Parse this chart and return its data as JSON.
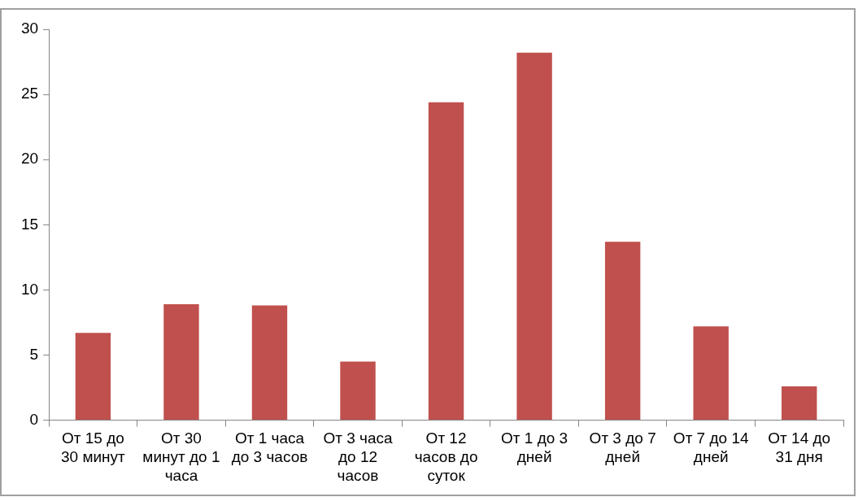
{
  "chart_data": {
    "type": "bar",
    "categories": [
      "От 15 до 30 минут",
      "От 30 минут до 1 часа",
      "От 1 часа до 3 часов",
      "От 3 часа до 12 часов",
      "От 12 часов до суток",
      "От 1 до 3 дней",
      "От 3 до 7 дней",
      "От 7 до 14 дней",
      "От 14 до 31 дня"
    ],
    "values": [
      6.7,
      8.9,
      8.8,
      4.5,
      24.4,
      28.2,
      13.7,
      7.2,
      2.6
    ],
    "color": "#c0504d",
    "ylim": [
      0,
      30
    ],
    "yticks": [
      0,
      5,
      10,
      15,
      20,
      25,
      30
    ],
    "legend": false
  }
}
